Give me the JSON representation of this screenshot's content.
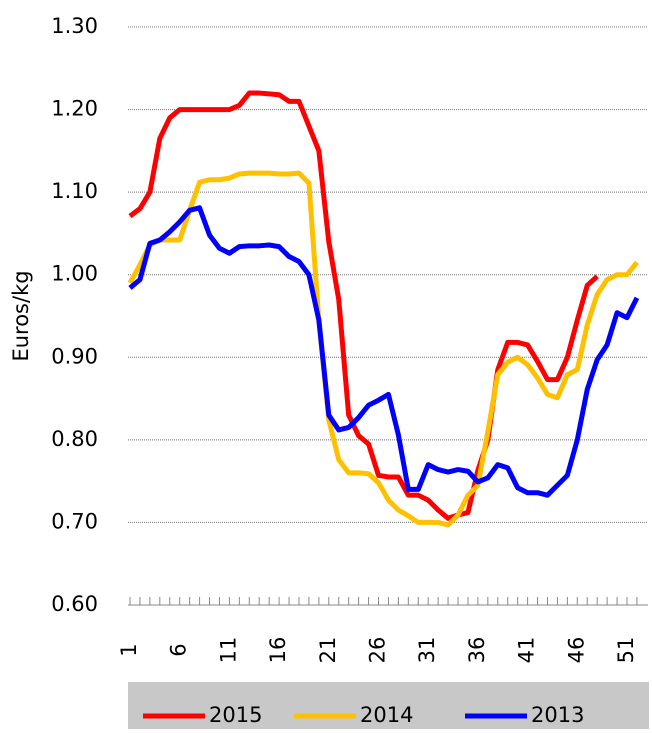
{
  "chart_data": {
    "type": "line",
    "y_label": "Euros/kg",
    "categories": [
      "1",
      null,
      null,
      null,
      null,
      "6",
      null,
      null,
      null,
      null,
      "11",
      null,
      null,
      null,
      null,
      "16",
      null,
      null,
      null,
      null,
      "21",
      null,
      null,
      null,
      null,
      "26",
      null,
      null,
      null,
      null,
      "31",
      null,
      null,
      null,
      null,
      "36",
      null,
      null,
      null,
      null,
      "41",
      null,
      null,
      null,
      null,
      "46",
      null,
      null,
      null,
      null,
      "51",
      null
    ],
    "series": [
      {
        "name": "2015",
        "color": "#ff0000",
        "values": [
          1.071,
          1.08,
          1.1,
          1.165,
          1.19,
          1.2,
          1.2,
          1.2,
          1.2,
          1.2,
          1.2,
          1.205,
          1.22,
          1.22,
          1.219,
          1.218,
          1.21,
          1.21,
          1.18,
          1.15,
          1.04,
          0.97,
          0.83,
          0.805,
          0.795,
          0.757,
          0.755,
          0.755,
          0.733,
          0.733,
          0.727,
          0.715,
          0.705,
          0.709,
          0.712,
          0.763,
          0.8,
          0.885,
          0.918,
          0.918,
          0.915,
          0.895,
          0.873,
          0.873,
          0.9,
          0.945,
          0.987,
          0.998,
          null,
          null,
          null,
          null
        ]
      },
      {
        "name": "2014",
        "color": "#ffc000",
        "values": [
          0.99,
          1.012,
          1.036,
          1.042,
          1.042,
          1.042,
          1.078,
          1.112,
          1.115,
          1.115,
          1.117,
          1.122,
          1.123,
          1.123,
          1.123,
          1.122,
          1.122,
          1.123,
          1.111,
          0.945,
          0.824,
          0.776,
          0.76,
          0.76,
          0.759,
          0.748,
          0.727,
          0.715,
          0.708,
          0.7,
          0.7,
          0.7,
          0.697,
          0.709,
          0.733,
          0.745,
          0.81,
          0.879,
          0.894,
          0.9,
          0.891,
          0.875,
          0.855,
          0.851,
          0.879,
          0.885,
          0.939,
          0.976,
          0.994,
          1.0,
          1.0,
          1.015
        ]
      },
      {
        "name": "2013",
        "color": "#0000ff",
        "values": [
          0.984,
          0.994,
          1.038,
          1.042,
          1.052,
          1.064,
          1.078,
          1.081,
          1.048,
          1.032,
          1.026,
          1.034,
          1.035,
          1.035,
          1.036,
          1.034,
          1.022,
          1.016,
          1.0,
          0.945,
          0.83,
          0.812,
          0.815,
          0.827,
          0.842,
          0.848,
          0.855,
          0.806,
          0.74,
          0.74,
          0.77,
          0.764,
          0.761,
          0.764,
          0.762,
          0.749,
          0.754,
          0.77,
          0.766,
          0.742,
          0.736,
          0.736,
          0.733,
          0.745,
          0.757,
          0.8,
          0.861,
          0.897,
          0.915,
          0.954,
          0.948,
          0.972
        ]
      }
    ],
    "ylim": [
      0.6,
      1.3
    ],
    "yticks": [
      {
        "value": 0.6,
        "label": "0.60"
      },
      {
        "value": 0.7,
        "label": "0.70"
      },
      {
        "value": 0.8,
        "label": "0.80"
      },
      {
        "value": 0.9,
        "label": "0.90"
      },
      {
        "value": 1.0,
        "label": "1.00"
      },
      {
        "value": 1.1,
        "label": "1.10"
      },
      {
        "value": 1.2,
        "label": "1.20"
      },
      {
        "value": 1.3,
        "label": "1.30"
      }
    ],
    "grid": true
  }
}
